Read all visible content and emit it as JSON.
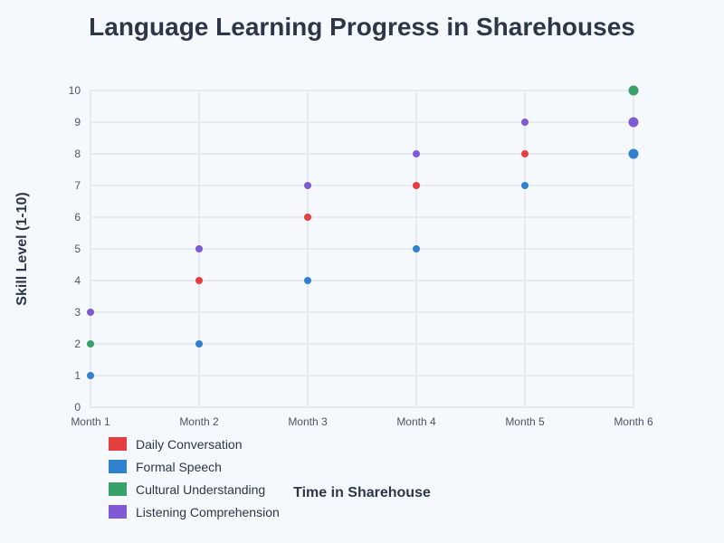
{
  "chart_data": {
    "type": "scatter",
    "title": "Language Learning Progress in Sharehouses",
    "xlabel": "Time in Sharehouse",
    "ylabel": "Skill Level (1-10)",
    "categories": [
      "Month 1",
      "Month 2",
      "Month 3",
      "Month 4",
      "Month 5",
      "Month 6"
    ],
    "y_ticks": [
      0,
      1,
      2,
      3,
      4,
      5,
      6,
      7,
      8,
      9,
      10
    ],
    "ylim": [
      0,
      10
    ],
    "grid": true,
    "legend_position": "bottom-left",
    "series": [
      {
        "name": "Daily Conversation",
        "color": "#e53e3e",
        "values": [
          null,
          4,
          6,
          7,
          8,
          null
        ]
      },
      {
        "name": "Formal Speech",
        "color": "#3182ce",
        "values": [
          1,
          2,
          4,
          5,
          7,
          8
        ]
      },
      {
        "name": "Cultural Understanding",
        "color": "#38a169",
        "values": [
          2,
          null,
          null,
          null,
          null,
          10
        ]
      },
      {
        "name": "Listening Comprehension",
        "color": "#805ad5",
        "values": [
          3,
          5,
          7,
          8,
          9,
          9
        ]
      }
    ],
    "highlight_last": true
  }
}
